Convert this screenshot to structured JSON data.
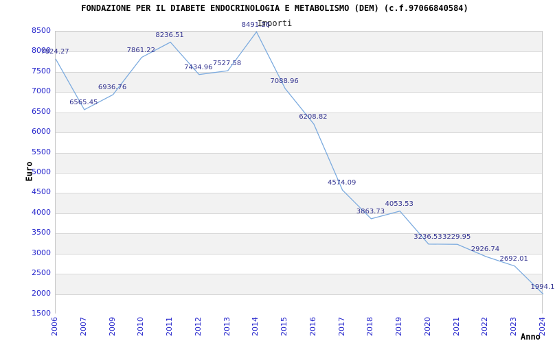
{
  "chart_data": {
    "type": "line",
    "title": "FONDAZIONE PER IL DIABETE ENDOCRINOLOGIA E METABOLISMO (DEM) (c.f.97066840584)",
    "subtitle": "Importi",
    "xlabel": "Anno",
    "ylabel": "Euro",
    "categories": [
      "2006",
      "2007",
      "2009",
      "2010",
      "2011",
      "2012",
      "2013",
      "2014",
      "2015",
      "2016",
      "2017",
      "2018",
      "2019",
      "2020",
      "2021",
      "2022",
      "2023",
      "2024"
    ],
    "values": [
      7824.27,
      6565.45,
      6936.76,
      7861.22,
      8236.51,
      7434.96,
      7527.58,
      8491.26,
      7088.96,
      6208.82,
      4574.09,
      3863.73,
      4053.53,
      3236.53,
      3229.95,
      2926.74,
      2692.01,
      1994.1
    ],
    "point_labels": [
      "7824.27",
      "6565.45",
      "6936.76",
      "7861.22",
      "8236.51",
      "7434.96",
      "7527.58",
      "8491.26",
      "7088.96",
      "6208.82",
      "4574.09",
      "3863.73",
      "4053.53",
      "3236.53",
      "3229.95",
      "2926.74",
      "2692.01",
      "1994.1"
    ],
    "ylim": [
      1500,
      8500
    ],
    "ytick_step": 500,
    "ytick_labels": [
      "8500",
      "8000",
      "7500",
      "7000",
      "6500",
      "6000",
      "5500",
      "5000",
      "4500",
      "4000",
      "3500",
      "3000",
      "2500",
      "2000",
      "1500"
    ],
    "grid": "horizontal",
    "legend_position": "none",
    "background_bands": true,
    "colors": {
      "line": "#7cabdf",
      "point_label": "#333390",
      "tick_label": "#2424cc",
      "band": "#f2f2f2",
      "gridline": "#d8d8d8",
      "plot_border": "#c8c8c8",
      "title": "#000000",
      "subtitle": "#222222",
      "background": "#ffffff"
    }
  }
}
